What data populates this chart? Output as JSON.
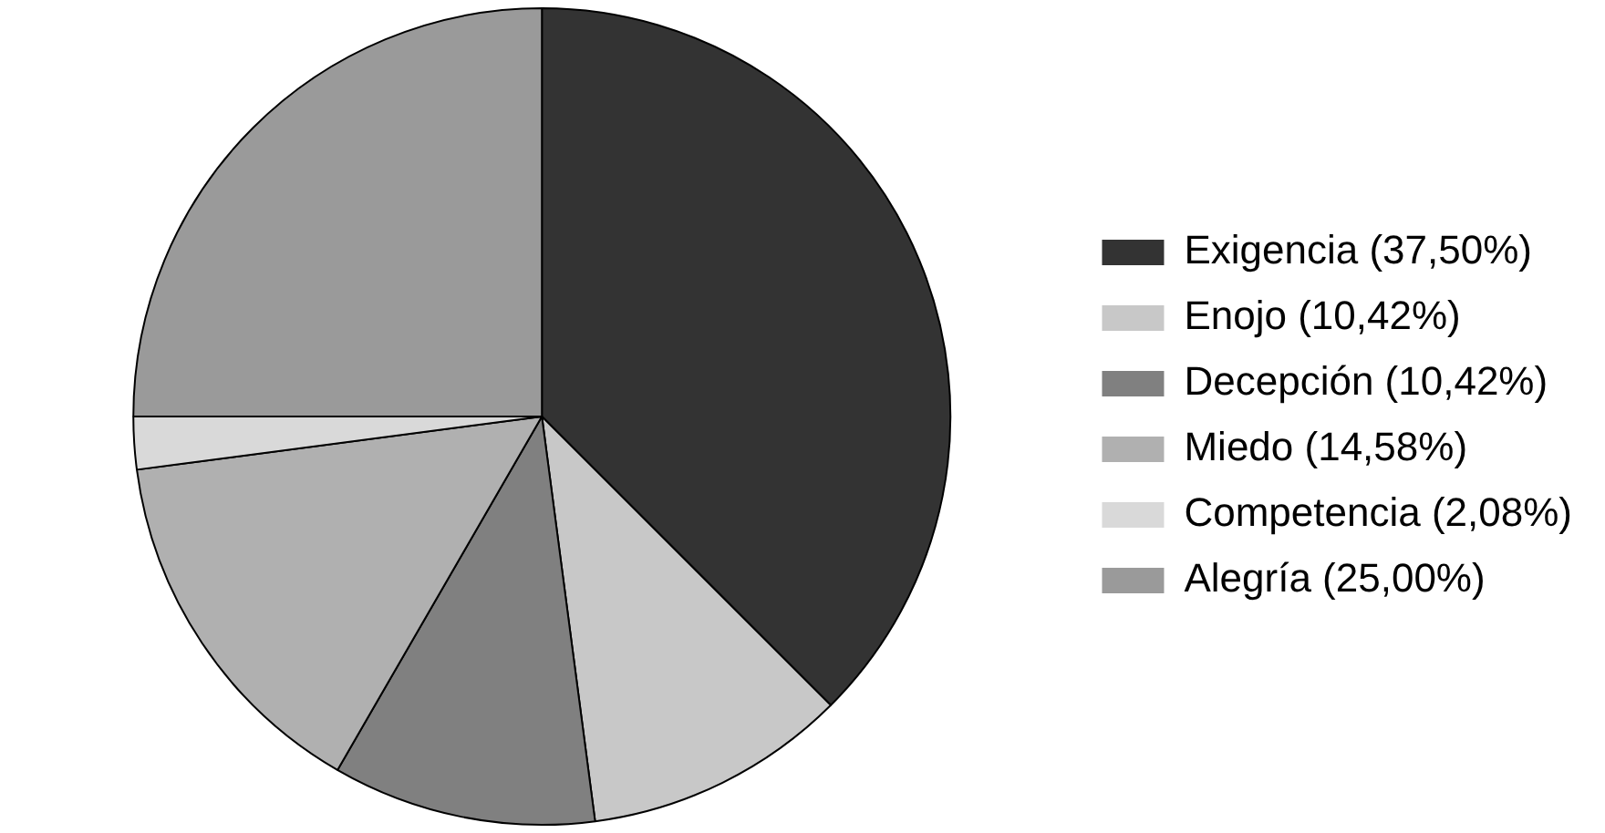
{
  "chart_data": {
    "type": "pie",
    "categories": [
      "Exigencia (37,50%)",
      "Enojo (10,42%)",
      "Decepción (10,42%)",
      "Miedo (14,58%)",
      "Competencia (2,08%)",
      "Alegría (25,00%)"
    ],
    "values": [
      37.5,
      10.42,
      10.42,
      14.58,
      2.08,
      25.0
    ],
    "colors": [
      "#333333",
      "#c8c8c8",
      "#808080",
      "#b0b0b0",
      "#d9d9d9",
      "#9a9a9a"
    ],
    "legend": "right"
  }
}
